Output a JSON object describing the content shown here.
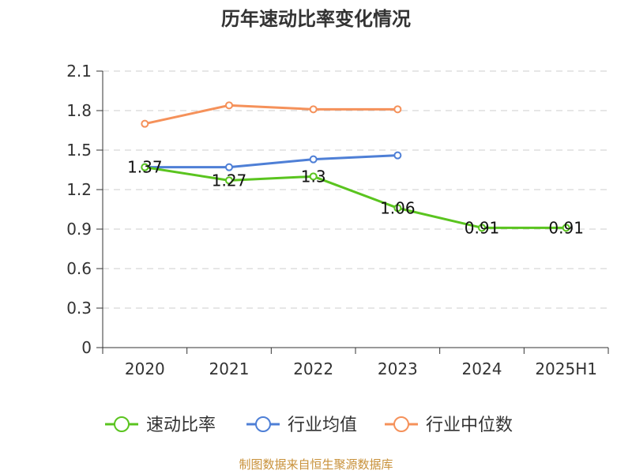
{
  "chart_data": {
    "type": "line",
    "title": "历年速动比率变化情况",
    "categories": [
      "2020",
      "2021",
      "2022",
      "2023",
      "2024",
      "2025H1"
    ],
    "y_ticks": [
      "0",
      "0.3",
      "0.6",
      "0.9",
      "1.2",
      "1.5",
      "1.8",
      "2.1"
    ],
    "ylim": [
      0,
      2.1
    ],
    "grid": "horizontal-dashed",
    "legend_position": "bottom",
    "series": [
      {
        "name": "速动比率",
        "color": "#5ac41f",
        "values": [
          1.37,
          1.27,
          1.3,
          1.06,
          0.91,
          0.91
        ],
        "show_labels": true
      },
      {
        "name": "行业均值",
        "color": "#4e7fd6",
        "values": [
          1.37,
          1.37,
          1.43,
          1.46,
          null,
          null
        ],
        "show_labels": false
      },
      {
        "name": "行业中位数",
        "color": "#f5915a",
        "values": [
          1.7,
          1.84,
          1.81,
          1.81,
          null,
          null
        ],
        "show_labels": false
      }
    ]
  },
  "source_note": "制图数据来自恒生聚源数据库"
}
